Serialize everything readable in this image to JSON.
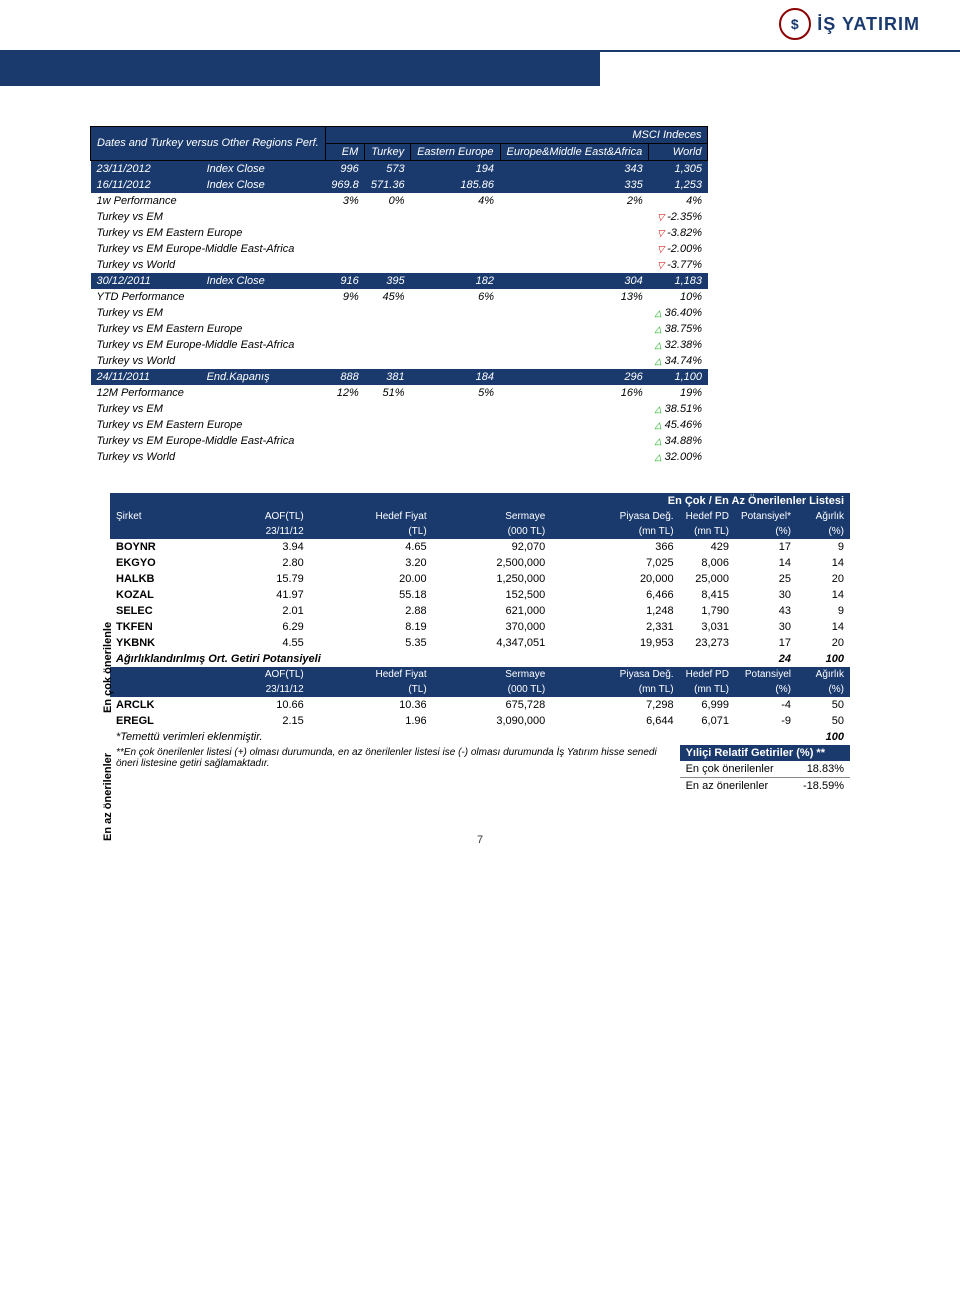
{
  "brand": "İŞ YATIRIM",
  "msci": {
    "side_header": "Dates and Turkey versus Other Regions Perf.",
    "top_title": "MSCI Indeces",
    "cols": [
      "EM",
      "Turkey",
      "Eastern Europe",
      "Europe&Middle East&Africa",
      "World"
    ],
    "rows": [
      {
        "type": "idx",
        "date": "23/11/2012",
        "label": "Index Close",
        "v": [
          "996",
          "573",
          "194",
          "343",
          "1,305"
        ]
      },
      {
        "type": "idx",
        "date": "16/11/2012",
        "label": "Index Close",
        "v": [
          "969.8",
          "571.36",
          "185.86",
          "335",
          "1,253"
        ]
      },
      {
        "type": "perf",
        "label": "1w Performance",
        "v": [
          "3%",
          "0%",
          "4%",
          "2%",
          "4%"
        ]
      },
      {
        "type": "cmp",
        "label": "Turkey vs EM",
        "val": "-2.35%",
        "dir": "down"
      },
      {
        "type": "cmp",
        "label": "Turkey vs EM  Eastern Europe",
        "val": "-3.82%",
        "dir": "down"
      },
      {
        "type": "cmp",
        "label": "Turkey vs EM Europe-Middle East-Africa",
        "val": "-2.00%",
        "dir": "down"
      },
      {
        "type": "cmp",
        "label": "Turkey vs World",
        "val": "-3.77%",
        "dir": "down"
      },
      {
        "type": "idx",
        "date": "30/12/2011",
        "label": "Index Close",
        "v": [
          "916",
          "395",
          "182",
          "304",
          "1,183"
        ]
      },
      {
        "type": "perf",
        "label": "YTD Performance",
        "v": [
          "9%",
          "45%",
          "6%",
          "13%",
          "10%"
        ]
      },
      {
        "type": "cmp",
        "label": "Turkey vs EM",
        "val": "36.40%",
        "dir": "up"
      },
      {
        "type": "cmp",
        "label": "Turkey vs EM  Eastern Europe",
        "val": "38.75%",
        "dir": "up"
      },
      {
        "type": "cmp",
        "label": "Turkey vs EM Europe-Middle East-Africa",
        "val": "32.38%",
        "dir": "up"
      },
      {
        "type": "cmp",
        "label": "Turkey vs World",
        "val": "34.74%",
        "dir": "up"
      },
      {
        "type": "idx",
        "date": "24/11/2011",
        "label": "End.Kapanış",
        "v": [
          "888",
          "381",
          "184",
          "296",
          "1,100"
        ]
      },
      {
        "type": "perf",
        "label": "12M Performance",
        "v": [
          "12%",
          "51%",
          "5%",
          "16%",
          "19%"
        ]
      },
      {
        "type": "cmp",
        "label": "Turkey vs EM",
        "val": "38.51%",
        "dir": "up"
      },
      {
        "type": "cmp",
        "label": "Turkey vs EM  Eastern Europe",
        "val": "45.46%",
        "dir": "up"
      },
      {
        "type": "cmp",
        "label": "Turkey vs EM Europe-Middle East-Africa",
        "val": "34.88%",
        "dir": "up"
      },
      {
        "type": "cmp",
        "label": "Turkey vs World",
        "val": "32.00%",
        "dir": "up"
      }
    ]
  },
  "reco": {
    "title": "En Çok / En Az Önerilenler Listesi",
    "side_top": "En çok önerilenle",
    "side_bottom": "En az önerilenler",
    "cols1": [
      "Şirket",
      "AOF(TL)",
      "Hedef Fiyat",
      "Sermaye",
      "Piyasa Değ.",
      "Hedef PD",
      "Potansiyel*",
      "Ağırlık"
    ],
    "cols2": [
      "",
      "23/11/12",
      "(TL)",
      "(000 TL)",
      "(mn TL)",
      "(mn TL)",
      "(%)",
      "(%)"
    ],
    "top_rows": [
      [
        "BOYNR",
        "3.94",
        "4.65",
        "92,070",
        "366",
        "429",
        "17",
        "9"
      ],
      [
        "EKGYO",
        "2.80",
        "3.20",
        "2,500,000",
        "7,025",
        "8,006",
        "14",
        "14"
      ],
      [
        "HALKB",
        "15.79",
        "20.00",
        "1,250,000",
        "20,000",
        "25,000",
        "25",
        "20"
      ],
      [
        "KOZAL",
        "41.97",
        "55.18",
        "152,500",
        "6,466",
        "8,415",
        "30",
        "14"
      ],
      [
        "SELEC",
        "2.01",
        "2.88",
        "621,000",
        "1,248",
        "1,790",
        "43",
        "9"
      ],
      [
        "TKFEN",
        "6.29",
        "8.19",
        "370,000",
        "2,331",
        "3,031",
        "30",
        "14"
      ],
      [
        "YKBNK",
        "4.55",
        "5.35",
        "4,347,051",
        "19,953",
        "23,273",
        "17",
        "20"
      ]
    ],
    "weighted_label": "Ağırlıklandırılmış Ort. Getiri Potansiyeli",
    "weighted_vals": [
      "24",
      "100"
    ],
    "cols1b": [
      "",
      "AOF(TL)",
      "Hedef Fiyat",
      "Sermaye",
      "Piyasa Değ.",
      "Hedef PD",
      "Potansiyel",
      "Ağırlık"
    ],
    "cols2b": [
      "",
      "23/11/12",
      "(TL)",
      "(000 TL)",
      "(mn TL)",
      "(mn TL)",
      "(%)",
      "(%)"
    ],
    "bottom_rows": [
      [
        "ARCLK",
        "10.66",
        "10.36",
        "675,728",
        "7,298",
        "6,999",
        "-4",
        "50"
      ],
      [
        "EREGL",
        "2.15",
        "1.96",
        "3,090,000",
        "6,644",
        "6,071",
        "-9",
        "50"
      ]
    ],
    "footnote1": "*Temettü verimleri eklenmiştir.",
    "total": "100",
    "footnote2": "**En çok önerilenler listesi (+) olması durumunda, en az önerilenler listesi ise (-) olması durumunda İş Yatırım hisse senedi öneri listesine getiri sağlamaktadır.",
    "returns_title": "Yıliçi  Relatif Getiriler (%) **",
    "returns": [
      [
        "En çok önerilenler",
        "18.83%"
      ],
      [
        "En az önerilenler",
        "-18.59%"
      ]
    ]
  },
  "page": "7"
}
